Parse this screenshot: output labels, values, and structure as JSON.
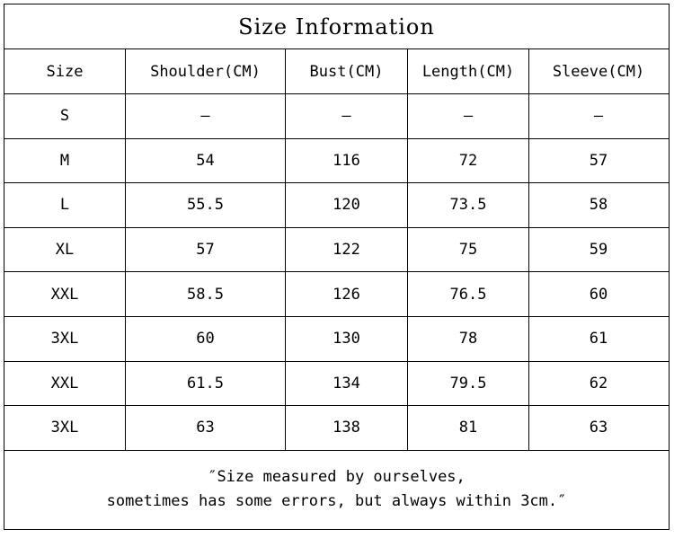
{
  "title": "Size Information",
  "table": {
    "header": [
      "Size",
      "Shoulder(CM)",
      "Bust(CM)",
      "Length(CM)",
      "Sleeve(CM)"
    ],
    "rows": [
      [
        "S",
        "–",
        "–",
        "–",
        "–"
      ],
      [
        "M",
        "54",
        "116",
        "72",
        "57"
      ],
      [
        "L",
        "55.5",
        "120",
        "73.5",
        "58"
      ],
      [
        "XL",
        "57",
        "122",
        "75",
        "59"
      ],
      [
        "XXL",
        "58.5",
        "126",
        "76.5",
        "60"
      ],
      [
        "3XL",
        "60",
        "130",
        "78",
        "61"
      ],
      [
        "XXL",
        "61.5",
        "134",
        "79.5",
        "62"
      ],
      [
        "3XL",
        "63",
        "138",
        "81",
        "63"
      ]
    ]
  },
  "note": [
    "″Size measured by ourselves,",
    "sometimes has some errors, but always within 3cm.″"
  ]
}
